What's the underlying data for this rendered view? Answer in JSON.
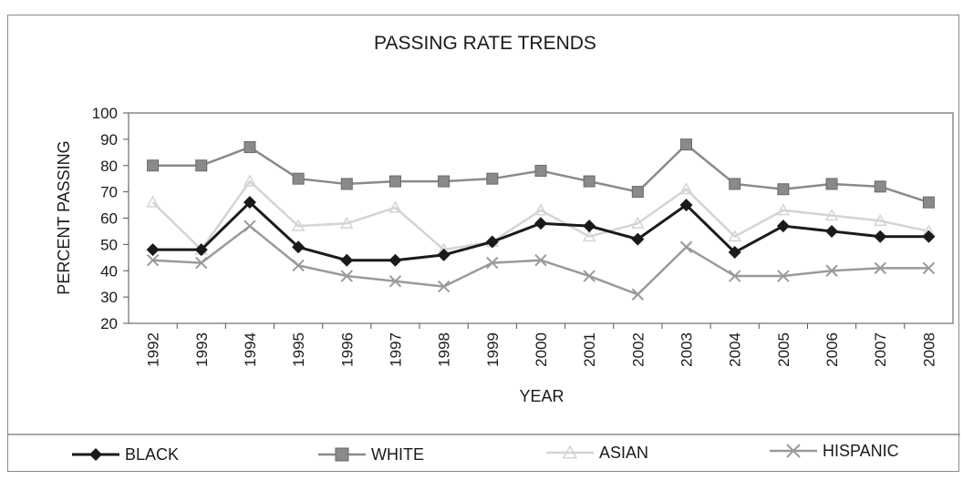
{
  "chart_data": {
    "type": "line",
    "title": "PASSING RATE TRENDS",
    "xlabel": "YEAR",
    "ylabel": "PERCENT PASSING",
    "ylim": [
      20,
      100
    ],
    "yticks": [
      20,
      30,
      40,
      50,
      60,
      70,
      80,
      90,
      100
    ],
    "grid": false,
    "legend_position": "bottom",
    "categories": [
      "1992",
      "1993",
      "1994",
      "1995",
      "1996",
      "1997",
      "1998",
      "1999",
      "2000",
      "2001",
      "2002",
      "2003",
      "2004",
      "2005",
      "2006",
      "2007",
      "2008"
    ],
    "series": [
      {
        "name": "BLACK",
        "color": "#1a1a1a",
        "marker": "diamond",
        "values": [
          48,
          48,
          66,
          49,
          44,
          44,
          46,
          51,
          58,
          57,
          52,
          65,
          47,
          57,
          55,
          53,
          53
        ]
      },
      {
        "name": "WHITE",
        "color": "#8a8a8a",
        "marker": "square",
        "values": [
          80,
          80,
          87,
          75,
          73,
          74,
          74,
          75,
          78,
          74,
          70,
          88,
          73,
          71,
          73,
          72,
          66
        ]
      },
      {
        "name": "ASIAN",
        "color": "#d4d4d4",
        "marker": "triangle",
        "values": [
          66,
          48,
          74,
          57,
          58,
          64,
          48,
          51,
          63,
          53,
          58,
          71,
          53,
          63,
          61,
          59,
          55
        ]
      },
      {
        "name": "HISPANIC",
        "color": "#9a9a9a",
        "marker": "x",
        "values": [
          44,
          43,
          57,
          42,
          38,
          36,
          34,
          43,
          44,
          38,
          31,
          49,
          38,
          38,
          40,
          41,
          41
        ]
      }
    ]
  }
}
